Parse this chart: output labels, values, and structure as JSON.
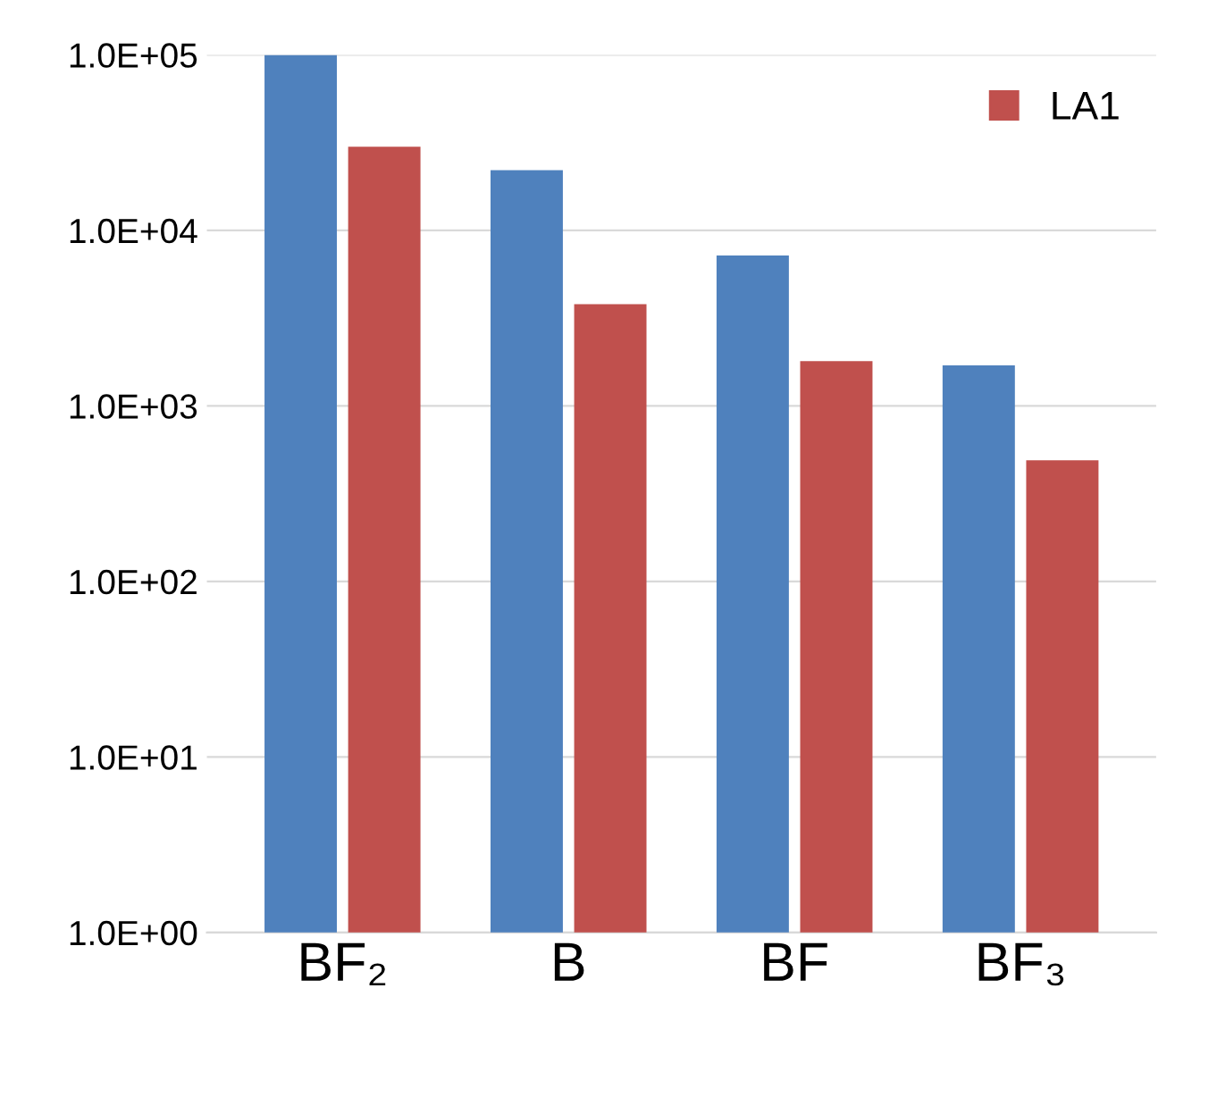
{
  "chart_data": {
    "type": "bar",
    "categories": [
      "BF₂",
      "B",
      "BF",
      "BF₃"
    ],
    "series": [
      {
        "color": "#4f81bd",
        "values": [
          100000,
          22000,
          7200,
          1700
        ]
      },
      {
        "name": "LA1",
        "color": "#c0504d",
        "values": [
          30000,
          3800,
          1800,
          490
        ]
      }
    ],
    "log": "y",
    "ylim": [
      1,
      100000
    ],
    "yticks": [
      {
        "value": 1,
        "label": "1.0E+00"
      },
      {
        "value": 10,
        "label": "1.0E+01"
      },
      {
        "value": 100,
        "label": "1.0E+02"
      },
      {
        "value": 1000,
        "label": "1.0E+03"
      },
      {
        "value": 10000,
        "label": "1.0E+04"
      },
      {
        "value": 100000,
        "label": "1.0E+05"
      }
    ],
    "grid": "y",
    "legend": "top right"
  }
}
